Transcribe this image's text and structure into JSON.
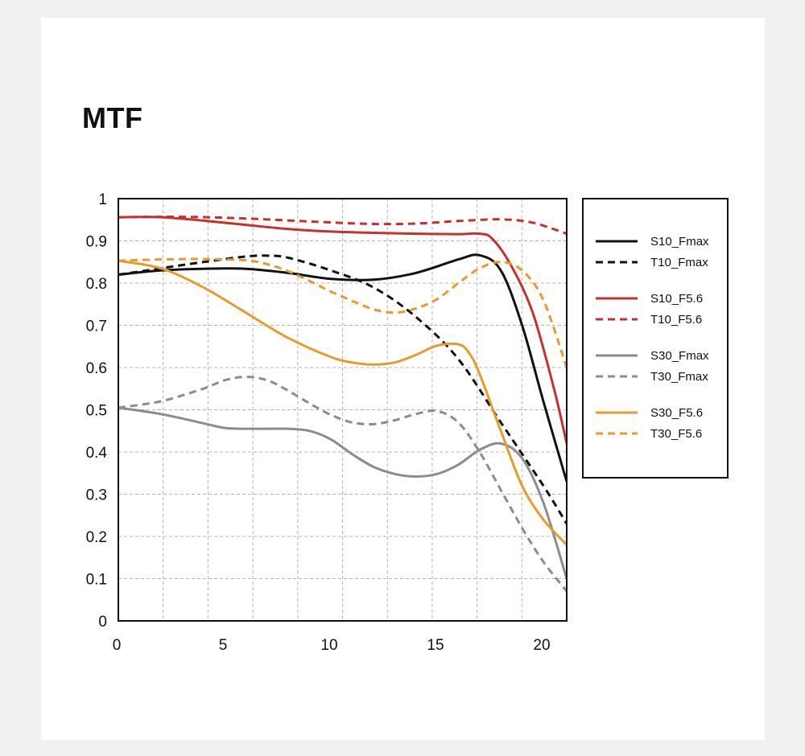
{
  "title": "MTF",
  "chart_data": {
    "type": "line",
    "title": "MTF",
    "xlabel": "",
    "ylabel": "",
    "xlim": [
      0,
      21.1
    ],
    "ylim": [
      0,
      1
    ],
    "x_ticks": [
      0,
      5,
      10,
      15,
      20
    ],
    "y_ticks": [
      0,
      0.1,
      0.2,
      0.3,
      0.4,
      0.5,
      0.6,
      0.7,
      0.8,
      0.9,
      1
    ],
    "x_tick_labels": [
      "0",
      "5",
      "10",
      "15",
      "20"
    ],
    "y_tick_labels": [
      "0",
      "0.1",
      "0.2",
      "0.3",
      "0.4",
      "0.5",
      "0.6",
      "0.7",
      "0.8",
      "0.9",
      "1"
    ],
    "grid": true,
    "legend_position": "right",
    "series": [
      {
        "name": "S10_Fmax",
        "color": "#111111",
        "dashed": false,
        "x": [
          0,
          2,
          4,
          6,
          8,
          10,
          12,
          14,
          16,
          17,
          18,
          19,
          20,
          21.1
        ],
        "y": [
          0.82,
          0.83,
          0.834,
          0.834,
          0.824,
          0.81,
          0.808,
          0.824,
          0.856,
          0.866,
          0.83,
          0.7,
          0.52,
          0.33
        ]
      },
      {
        "name": "T10_Fmax",
        "color": "#111111",
        "dashed": true,
        "x": [
          0,
          2,
          4,
          6,
          7,
          8,
          10,
          12,
          14,
          16,
          18,
          20,
          21.1
        ],
        "y": [
          0.82,
          0.835,
          0.85,
          0.863,
          0.865,
          0.86,
          0.83,
          0.79,
          0.72,
          0.62,
          0.47,
          0.32,
          0.23
        ]
      },
      {
        "name": "S10_F5.6",
        "color": "#c8302c",
        "dashed": false,
        "x": [
          0,
          2,
          4,
          6,
          8,
          10,
          12,
          14,
          16,
          17,
          17.6,
          18.5,
          19.5,
          20.5,
          21.1
        ],
        "y": [
          0.956,
          0.956,
          0.948,
          0.938,
          0.928,
          0.922,
          0.919,
          0.917,
          0.916,
          0.917,
          0.905,
          0.84,
          0.73,
          0.55,
          0.42
        ]
      },
      {
        "name": "T10_F5.6",
        "color": "#c8302c",
        "dashed": true,
        "x": [
          0,
          3,
          6,
          9,
          12,
          14,
          16,
          18,
          19.5,
          21.1
        ],
        "y": [
          0.956,
          0.957,
          0.953,
          0.946,
          0.94,
          0.941,
          0.947,
          0.951,
          0.943,
          0.917
        ]
      },
      {
        "name": "S30_Fmax",
        "color": "#8c8c8c",
        "dashed": false,
        "x": [
          0,
          2,
          4,
          5,
          6,
          7,
          8,
          9,
          10,
          11,
          12,
          13,
          14,
          15,
          16,
          17,
          18,
          19,
          20,
          21.1
        ],
        "y": [
          0.505,
          0.49,
          0.468,
          0.457,
          0.455,
          0.455,
          0.455,
          0.45,
          0.43,
          0.395,
          0.365,
          0.348,
          0.342,
          0.348,
          0.37,
          0.405,
          0.42,
          0.385,
          0.28,
          0.1
        ]
      },
      {
        "name": "T30_Fmax",
        "color": "#8c8c8c",
        "dashed": true,
        "x": [
          0,
          2,
          4,
          5,
          6,
          7,
          8,
          9,
          10,
          11,
          12,
          13,
          14,
          15,
          16,
          17,
          18,
          19,
          20,
          21.1
        ],
        "y": [
          0.505,
          0.52,
          0.55,
          0.57,
          0.578,
          0.57,
          0.545,
          0.515,
          0.488,
          0.47,
          0.466,
          0.475,
          0.49,
          0.497,
          0.47,
          0.4,
          0.31,
          0.22,
          0.14,
          0.07
        ]
      },
      {
        "name": "S30_F5.6",
        "color": "#eb9a2a",
        "dashed": false,
        "x": [
          0,
          2,
          4,
          6,
          8,
          10,
          11,
          12,
          13,
          14,
          15,
          16,
          16.5,
          17,
          18,
          19,
          20,
          21.1
        ],
        "y": [
          0.853,
          0.835,
          0.79,
          0.73,
          0.67,
          0.625,
          0.612,
          0.607,
          0.612,
          0.63,
          0.652,
          0.655,
          0.635,
          0.585,
          0.45,
          0.32,
          0.24,
          0.18
        ]
      },
      {
        "name": "T30_F5.6",
        "color": "#eb9a2a",
        "dashed": true,
        "x": [
          0,
          2,
          4,
          6,
          7,
          8,
          9,
          10,
          11,
          12,
          13,
          14,
          15,
          16,
          17,
          18,
          19,
          20,
          21.1
        ],
        "y": [
          0.853,
          0.856,
          0.857,
          0.854,
          0.845,
          0.828,
          0.805,
          0.78,
          0.758,
          0.738,
          0.73,
          0.74,
          0.762,
          0.8,
          0.835,
          0.85,
          0.83,
          0.76,
          0.6
        ]
      }
    ],
    "legend_groups": [
      [
        "S10_Fmax",
        "T10_Fmax"
      ],
      [
        "S10_F5.6",
        "T10_F5.6"
      ],
      [
        "S30_Fmax",
        "T30_Fmax"
      ],
      [
        "S30_F5.6",
        "T30_F5.6"
      ]
    ]
  }
}
